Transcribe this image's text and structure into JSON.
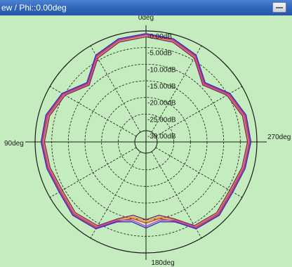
{
  "window": {
    "title": "ew / Phi::0.00deg"
  },
  "colors": {
    "background": "#c5ecbf",
    "grid": "#1a1a1a",
    "series": [
      "#d43a2a",
      "#e2a020",
      "#c040c0",
      "#3030d0",
      "#7a3060"
    ]
  },
  "chart_data": {
    "type": "polar-line",
    "title": "",
    "angle_labels": {
      "top": "0deg",
      "left": "90deg",
      "right": "270deg",
      "bottom": "180deg"
    },
    "rlim_db": [
      -30,
      0
    ],
    "rings": [
      "-0.00dB",
      "-5.00dB",
      "-10.00dB",
      "-15.00dB",
      "-20.00dB",
      "-25.00dB",
      "-30.00dB"
    ],
    "angles_deg": [
      0,
      15,
      30,
      45,
      60,
      75,
      90,
      105,
      120,
      135,
      150,
      160,
      170,
      180,
      190,
      200,
      210,
      225,
      240,
      255,
      270,
      285,
      300,
      315,
      330,
      345,
      360
    ],
    "series": [
      {
        "values": [
          -1.0,
          -1.5,
          -3.5,
          -8.5,
          -4.5,
          -2.5,
          -2.0,
          -2.8,
          -3.5,
          -2.5,
          -3.5,
          -8.0,
          -10.0,
          -9.0,
          -10.0,
          -8.0,
          -3.5,
          -2.5,
          -3.5,
          -2.8,
          -2.0,
          -2.5,
          -4.5,
          -8.5,
          -3.5,
          -1.5,
          -1.0
        ]
      },
      {
        "values": [
          -1.5,
          -2.0,
          -4.0,
          -9.0,
          -5.0,
          -3.0,
          -2.5,
          -3.2,
          -4.0,
          -3.0,
          -4.0,
          -8.5,
          -10.5,
          -9.5,
          -10.5,
          -8.5,
          -4.0,
          -3.0,
          -4.0,
          -3.2,
          -2.5,
          -3.0,
          -5.0,
          -9.0,
          -4.0,
          -2.0,
          -1.5
        ]
      },
      {
        "values": [
          -1.2,
          -1.8,
          -3.8,
          -8.8,
          -4.8,
          -2.8,
          -2.3,
          -3.0,
          -3.8,
          -2.8,
          -3.8,
          -8.3,
          -9.5,
          -8.0,
          -9.5,
          -8.3,
          -3.8,
          -2.8,
          -3.8,
          -3.0,
          -2.3,
          -2.8,
          -4.8,
          -8.8,
          -3.8,
          -1.8,
          -1.2
        ]
      },
      {
        "values": [
          -0.8,
          -1.3,
          -3.2,
          -8.2,
          -4.2,
          -2.2,
          -1.8,
          -2.5,
          -3.2,
          -2.2,
          -3.2,
          -7.8,
          -9.0,
          -7.5,
          -9.0,
          -7.8,
          -3.2,
          -2.2,
          -3.2,
          -2.5,
          -1.8,
          -2.2,
          -4.2,
          -8.2,
          -3.2,
          -1.3,
          -0.8
        ]
      },
      {
        "values": [
          -1.8,
          -2.3,
          -4.3,
          -9.2,
          -5.3,
          -3.3,
          -2.8,
          -3.5,
          -4.3,
          -3.3,
          -4.3,
          -8.8,
          -11.0,
          -10.0,
          -11.0,
          -8.8,
          -4.3,
          -3.3,
          -4.3,
          -3.5,
          -2.8,
          -3.3,
          -5.3,
          -9.2,
          -4.3,
          -2.3,
          -1.8
        ]
      }
    ]
  }
}
